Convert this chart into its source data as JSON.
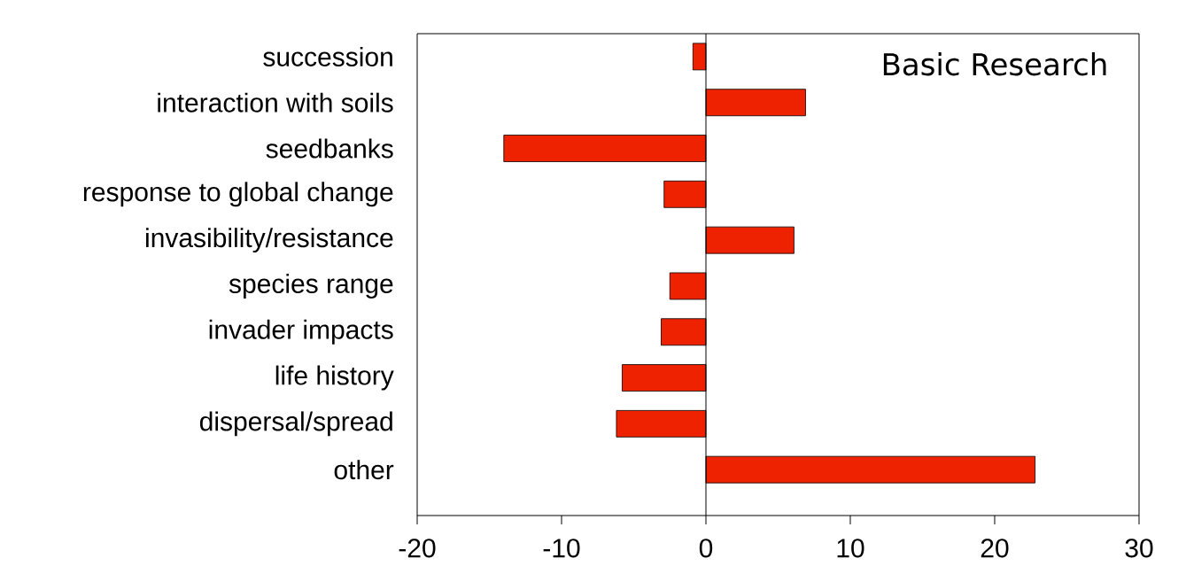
{
  "chart_data": {
    "type": "bar",
    "orientation": "horizontal",
    "categories": [
      "succession",
      "interaction with soils",
      "seedbanks",
      "response to global change",
      "invasibility/resistance",
      "species range",
      "invader impacts",
      "life history",
      "dispersal/spread",
      "other"
    ],
    "values": [
      -0.9,
      6.9,
      -14.0,
      -2.9,
      6.1,
      -2.5,
      -3.1,
      -5.8,
      -6.2,
      22.8
    ],
    "color": "#ee2200",
    "xlim": [
      -20,
      30
    ],
    "xticks": [
      -20,
      -10,
      0,
      10,
      20,
      30
    ],
    "annotations": [
      "Basic Research"
    ]
  }
}
